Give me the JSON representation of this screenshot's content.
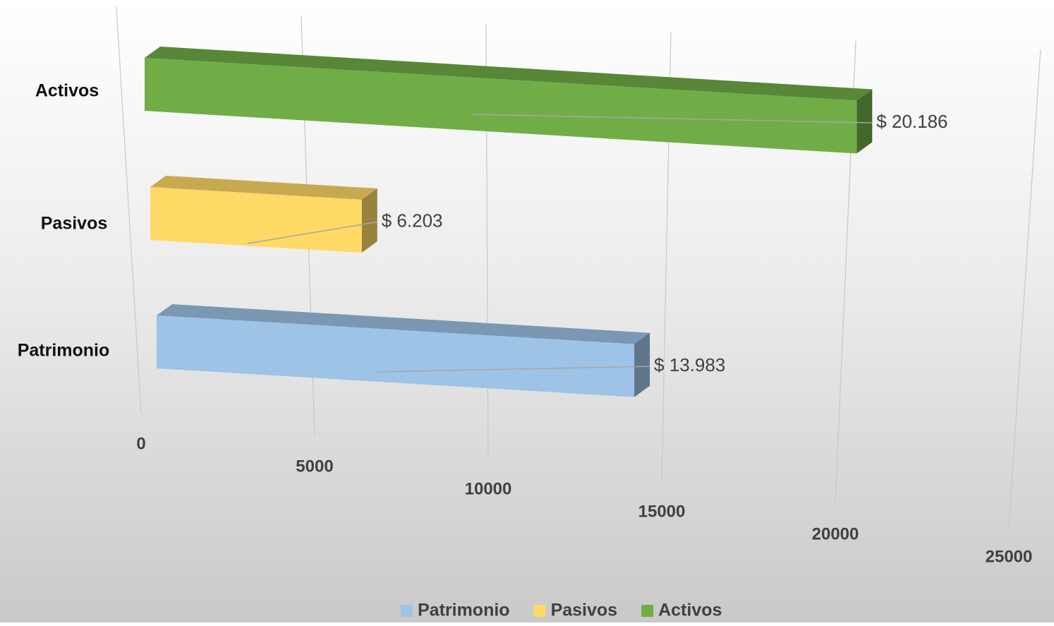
{
  "chart_data": {
    "type": "bar3d",
    "orientation": "horizontal",
    "categories": [
      "Patrimonio",
      "Pasivos",
      "Activos"
    ],
    "series": [
      {
        "name": "Patrimonio",
        "color": "#9dc3e6",
        "values": [
          13983,
          null,
          null
        ],
        "value_labels": [
          "$ 13.983",
          null,
          null
        ]
      },
      {
        "name": "Pasivos",
        "color": "#ffd966",
        "values": [
          null,
          6203,
          null
        ],
        "value_labels": [
          null,
          "$ 6.203",
          null
        ]
      },
      {
        "name": "Activos",
        "color": "#70ad47",
        "values": [
          null,
          null,
          20186
        ],
        "value_labels": [
          null,
          null,
          "$ 20.186"
        ]
      }
    ],
    "xlim": [
      0,
      25000
    ],
    "xticks": [
      0,
      5000,
      10000,
      15000,
      20000,
      25000
    ],
    "grid": true,
    "legend": "bottom"
  }
}
